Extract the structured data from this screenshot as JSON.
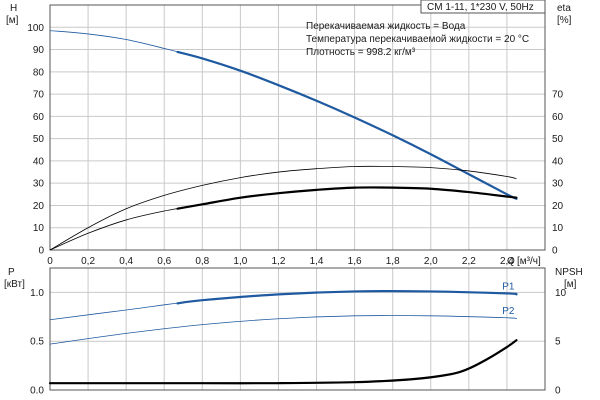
{
  "header_box": "CM 1-11, 1*230 V, 50Hz",
  "notes": [
    "Перекачиваемая жидкость = Вода",
    "Температура перекачиваемой жидкости = 20 °C",
    "Плотность = 998.2 кг/м³"
  ],
  "colors": {
    "blue": "#1f5aa0",
    "black": "#000000",
    "grid": "#c9c9c9"
  },
  "chart_data": [
    {
      "type": "line",
      "panel": "top",
      "x_label": "Q",
      "x_unit": "[м³/ч]",
      "xlim": [
        0,
        2.6
      ],
      "x_ticks": [
        "0",
        "0,2",
        "0,4",
        "0,6",
        "0,8",
        "1,0",
        "1,2",
        "1,4",
        "1,6",
        "1,8",
        "2,0",
        "2,2",
        "2,4"
      ],
      "y_left": {
        "label": "H",
        "unit": "[м]",
        "lim": [
          0,
          110
        ],
        "ticks": [
          "0",
          "10",
          "20",
          "30",
          "40",
          "50",
          "60",
          "70",
          "80",
          "90",
          "100"
        ]
      },
      "y_right": {
        "label": "eta",
        "unit": "[%]",
        "lim": [
          0,
          110
        ],
        "ticks": [
          "0",
          "10",
          "20",
          "30",
          "40",
          "50",
          "60",
          "70"
        ]
      },
      "grid": true,
      "series": [
        {
          "axis": "left",
          "color": "#1f5aa0",
          "op_range": [
            0.67,
            2.45
          ],
          "x": [
            0,
            0.2,
            0.4,
            0.6,
            0.8,
            1.0,
            1.2,
            1.4,
            1.6,
            1.8,
            2.0,
            2.2,
            2.4,
            2.45
          ],
          "y": [
            98.5,
            97,
            94.5,
            90.5,
            86,
            80.5,
            74,
            67,
            59.5,
            51.5,
            43,
            34,
            25,
            23
          ]
        },
        {
          "axis": "right",
          "color": "#000000",
          "op_range": [
            -1,
            -1
          ],
          "x": [
            0,
            0.2,
            0.4,
            0.6,
            0.8,
            1.0,
            1.2,
            1.4,
            1.6,
            1.8,
            2.0,
            2.2,
            2.4,
            2.45
          ],
          "y": [
            0,
            10,
            18.5,
            24.5,
            29,
            32.5,
            35,
            36.5,
            37.5,
            37.5,
            37,
            35.5,
            33,
            32
          ]
        },
        {
          "axis": "right",
          "color": "#000000",
          "op_range": [
            0.67,
            2.45
          ],
          "x": [
            0,
            0.2,
            0.4,
            0.6,
            0.8,
            1.0,
            1.2,
            1.4,
            1.6,
            1.8,
            2.0,
            2.2,
            2.4,
            2.45
          ],
          "y": [
            0,
            7.5,
            13.5,
            17.5,
            20.5,
            23.5,
            25.5,
            27,
            28,
            28,
            27.5,
            26,
            24,
            23.5
          ]
        }
      ]
    },
    {
      "type": "line",
      "panel": "bottom",
      "xlim": [
        0,
        2.6
      ],
      "y_left": {
        "label": "P",
        "unit": "[кВт]",
        "lim": [
          0,
          1.25
        ],
        "ticks": [
          "0.0",
          "0.5",
          "1.0"
        ]
      },
      "y_right": {
        "label": "NPSH",
        "unit": "[м]",
        "lim": [
          0,
          12.5
        ],
        "ticks": [
          "0",
          "5",
          "10"
        ]
      },
      "grid": true,
      "series": [
        {
          "name": "P1",
          "axis": "left",
          "color": "#1f5aa0",
          "op_range": [
            0.67,
            2.45
          ],
          "x": [
            0,
            0.4,
            0.8,
            1.2,
            1.6,
            2.0,
            2.4,
            2.45
          ],
          "y": [
            0.72,
            0.82,
            0.92,
            0.98,
            1.01,
            1.01,
            0.99,
            0.98
          ]
        },
        {
          "name": "P2",
          "axis": "left",
          "color": "#1f5aa0",
          "op_range": [
            -1,
            -1
          ],
          "x": [
            0,
            0.4,
            0.8,
            1.2,
            1.6,
            2.0,
            2.4,
            2.45
          ],
          "y": [
            0.47,
            0.58,
            0.67,
            0.73,
            0.76,
            0.76,
            0.74,
            0.73
          ]
        },
        {
          "axis": "right",
          "color": "#000000",
          "op_range": [
            0,
            2.45
          ],
          "x": [
            0,
            0.4,
            0.8,
            1.2,
            1.6,
            1.9,
            2.1,
            2.2,
            2.3,
            2.4,
            2.45
          ],
          "y": [
            0.7,
            0.7,
            0.7,
            0.7,
            0.8,
            1.1,
            1.6,
            2.2,
            3.2,
            4.4,
            5.1
          ]
        }
      ]
    }
  ]
}
